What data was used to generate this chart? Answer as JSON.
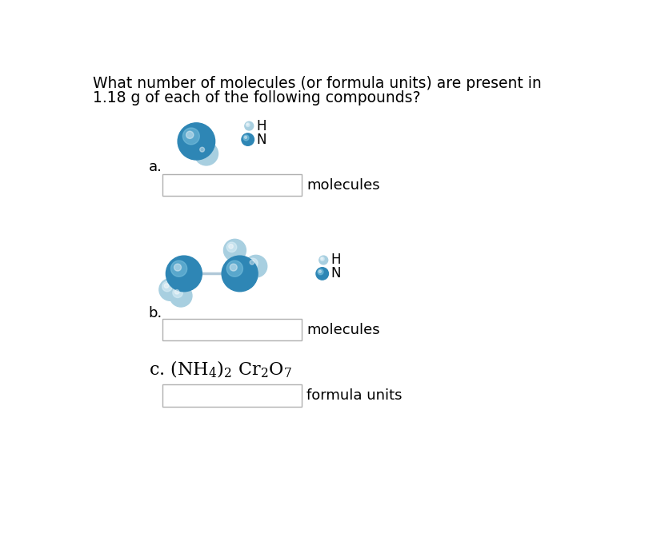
{
  "title_line1": "What number of molecules (or formula units) are present in",
  "title_line2": "1.18 g of each of the following compounds?",
  "label_a": "a.",
  "label_b": "b.",
  "label_c": "c.",
  "label_molecules": "molecules",
  "label_formula_units": "formula units",
  "bg_color": "#ffffff",
  "text_color": "#000000",
  "box_edge_color": "#b0b0b0",
  "blue_dark": "#2e86b5",
  "blue_mid": "#4aa8d0",
  "blue_light": "#7dc4e0",
  "blue_highlight": "#c8e8f5",
  "sphere_H_base": "#a8cfe0",
  "sphere_H_light": "#ddf0f8",
  "sphere_N_base": "#2e86b5",
  "sphere_N_light": "#7dc4e0",
  "title_fontsize": 13.5,
  "label_fontsize": 13,
  "legend_fontsize": 12,
  "formula_fontsize": 16
}
